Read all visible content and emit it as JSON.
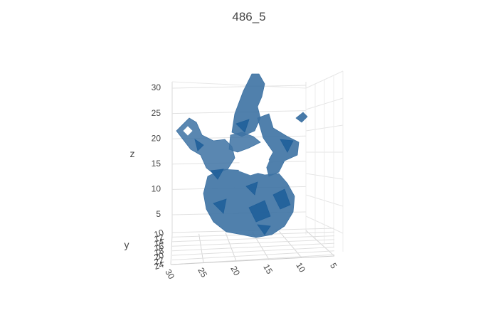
{
  "chart_data": {
    "type": "surface",
    "title": "486_5",
    "axes": {
      "x": {
        "label": "",
        "ticks": [
          "30",
          "25",
          "20",
          "15",
          "10",
          "5"
        ],
        "range": [
          30,
          5
        ]
      },
      "y": {
        "label": "y",
        "ticks": [
          "10",
          "12",
          "14",
          "16",
          "18",
          "20",
          "22",
          "24"
        ],
        "range": [
          10,
          24
        ]
      },
      "z": {
        "label": "z",
        "ticks": [
          "5",
          "10",
          "15",
          "20",
          "25",
          "30"
        ],
        "range": [
          3,
          31
        ]
      }
    },
    "grid": true,
    "mesh_color": "#3d72a3",
    "mesh_dark_color": "#1f5f9a"
  }
}
